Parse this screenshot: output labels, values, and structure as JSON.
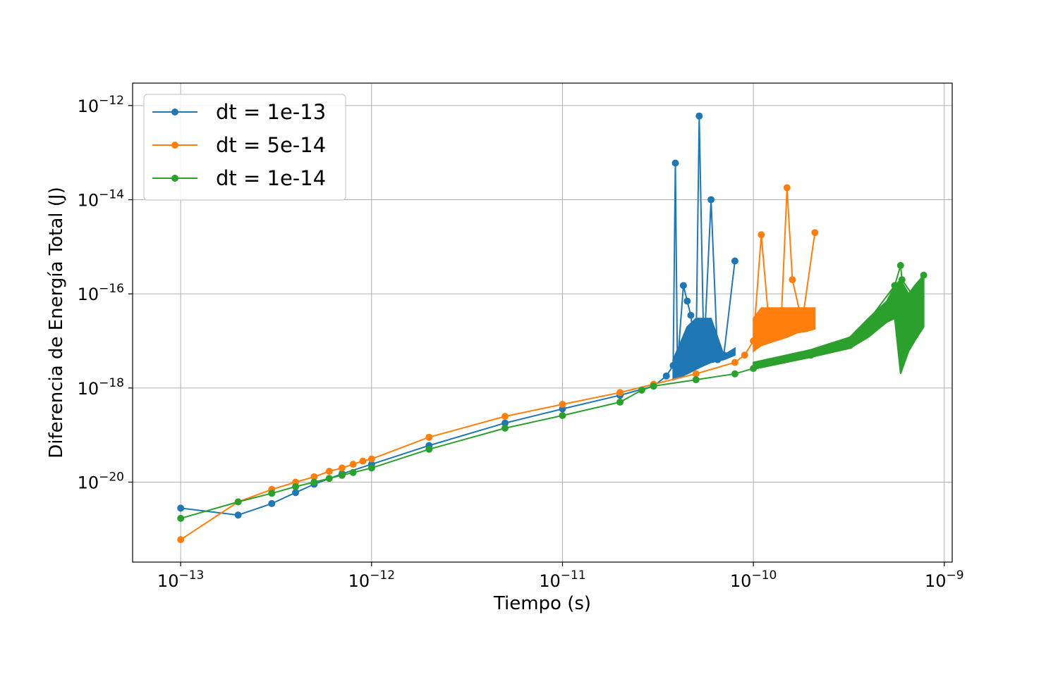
{
  "chart_data": {
    "type": "line",
    "xlabel": "Tiempo (s)",
    "ylabel": "Diferencia de Energía Total (J)",
    "xscale": "log",
    "yscale": "log",
    "xlim": [
      5.6e-14,
      1.1e-09
    ],
    "ylim": [
      2e-22,
      3e-12
    ],
    "grid": true,
    "legend_position": "top-left",
    "x_ticks": [
      {
        "base": "10",
        "exp": "−13"
      },
      {
        "base": "10",
        "exp": "−12"
      },
      {
        "base": "10",
        "exp": "−11"
      },
      {
        "base": "10",
        "exp": "−10"
      },
      {
        "base": "10",
        "exp": "−9"
      }
    ],
    "y_ticks": [
      {
        "base": "10",
        "exp": "−20"
      },
      {
        "base": "10",
        "exp": "−18"
      },
      {
        "base": "10",
        "exp": "−16"
      },
      {
        "base": "10",
        "exp": "−14"
      },
      {
        "base": "10",
        "exp": "−12"
      }
    ],
    "series": [
      {
        "name": "dt = 1e-13",
        "color": "#1f77b4",
        "x": [
          1e-13,
          2e-13,
          3e-13,
          4e-13,
          5e-13,
          7e-13,
          1e-12,
          2e-12,
          5e-12,
          1e-11,
          2e-11,
          3e-11,
          3.5e-11,
          3.8e-11,
          3.9e-11,
          4e-11,
          4.3e-11,
          4.5e-11,
          4.7e-11,
          5e-11,
          5.2e-11,
          5.5e-11,
          6e-11,
          6.5e-11,
          7e-11,
          8e-11
        ],
        "y": [
          2.8e-21,
          2e-21,
          3.5e-21,
          6e-21,
          9e-21,
          1.5e-20,
          2.4e-20,
          6e-20,
          1.8e-19,
          3.6e-19,
          7e-19,
          1.1e-18,
          1.8e-18,
          3e-18,
          6e-14,
          3e-18,
          1.5e-16,
          7e-17,
          3.5e-17,
          4e-18,
          6e-13,
          5e-18,
          1e-14,
          4e-18,
          5e-18,
          5e-16
        ],
        "band": {
          "x": [
            3.8e-11,
            4.5e-11,
            5e-11,
            5.5e-11,
            6e-11,
            7e-11,
            8e-11
          ],
          "low": [
            1.5e-18,
            2e-18,
            2.5e-18,
            3e-18,
            3.5e-18,
            4e-18,
            5e-18
          ],
          "high": [
            4e-18,
            2e-17,
            3e-17,
            3e-17,
            3e-17,
            5e-18,
            7e-18
          ]
        }
      },
      {
        "name": "dt = 5e-14",
        "color": "#ff7f0e",
        "x": [
          1e-13,
          2e-13,
          3e-13,
          4e-13,
          5e-13,
          6e-13,
          7e-13,
          8e-13,
          9e-13,
          1e-12,
          2e-12,
          5e-12,
          1e-11,
          2e-11,
          3e-11,
          5e-11,
          8e-11,
          9e-11,
          1e-10,
          1.1e-10,
          1.2e-10,
          1.4e-10,
          1.5e-10,
          1.6e-10,
          1.8e-10,
          2.1e-10
        ],
        "y": [
          6e-22,
          3.8e-21,
          7e-21,
          1e-20,
          1.3e-20,
          1.7e-20,
          2e-20,
          2.4e-20,
          2.8e-20,
          3.1e-20,
          9e-20,
          2.5e-19,
          4.5e-19,
          8e-19,
          1.2e-18,
          2e-18,
          3.5e-18,
          5e-18,
          1e-17,
          1.8e-15,
          3e-17,
          3e-17,
          1.8e-14,
          2e-16,
          2.5e-17,
          2e-15
        ],
        "band": {
          "x": [
            1e-10,
            1.1e-10,
            1.3e-10,
            1.5e-10,
            1.7e-10,
            1.9e-10,
            2.1e-10
          ],
          "low": [
            6e-18,
            8e-18,
            1e-17,
            1.2e-17,
            1.5e-17,
            1.6e-17,
            1.8e-17
          ],
          "high": [
            3e-17,
            5e-17,
            5e-17,
            5e-17,
            5e-17,
            5e-17,
            5e-17
          ]
        }
      },
      {
        "name": "dt = 1e-14",
        "color": "#2ca02c",
        "x": [
          1e-13,
          2e-13,
          3e-13,
          4e-13,
          5e-13,
          6e-13,
          7e-13,
          8e-13,
          1e-12,
          2e-12,
          5e-12,
          1e-11,
          2e-11,
          2.6e-11,
          3e-11,
          5e-11,
          8e-11,
          1e-10,
          2e-10,
          3.2e-10,
          5.5e-10,
          5.9e-10,
          6e-10,
          7e-10,
          7.8e-10
        ],
        "y": [
          1.7e-21,
          3.8e-21,
          5.8e-21,
          8e-21,
          1e-20,
          1.2e-20,
          1.4e-20,
          1.6e-20,
          2e-20,
          5e-20,
          1.4e-19,
          2.6e-19,
          5e-19,
          9e-19,
          1.1e-18,
          1.5e-18,
          2e-18,
          2.6e-18,
          5e-18,
          8e-18,
          1.5e-16,
          4e-16,
          2e-16,
          8e-17,
          2.5e-16
        ],
        "band": {
          "x": [
            1e-10,
            2e-10,
            3.2e-10,
            4e-10,
            5e-10,
            5.5e-10,
            5.9e-10,
            6.5e-10,
            7e-10,
            7.8e-10
          ],
          "low": [
            2.5e-18,
            4.5e-18,
            7e-18,
            1.2e-17,
            2.5e-17,
            3e-17,
            2e-18,
            6e-18,
            1e-17,
            2e-17
          ],
          "high": [
            3.5e-18,
            6.5e-18,
            1.2e-17,
            3e-17,
            7e-17,
            1.5e-16,
            2e-16,
            1e-16,
            1.5e-16,
            2.5e-16
          ]
        }
      }
    ]
  }
}
